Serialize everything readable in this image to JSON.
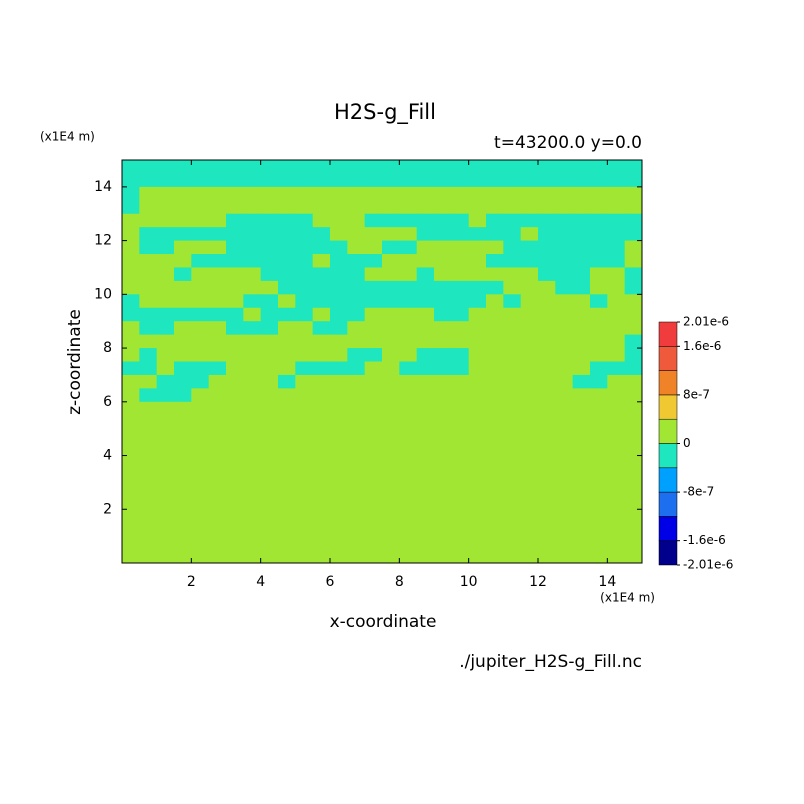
{
  "chart_data": {
    "type": "heatmap",
    "title": "H2S-g_Fill",
    "subtitle": "t=43200.0 y=0.0",
    "xlabel": "x-coordinate",
    "ylabel": "z-coordinate",
    "xunit": "(x1E4 m)",
    "yunit": "(x1E4 m)",
    "footer": "./jupiter_H2S-g_Fill.nc",
    "xlim": [
      0,
      15
    ],
    "ylim": [
      0,
      15
    ],
    "xticks": [
      2,
      4,
      6,
      8,
      10,
      12,
      14
    ],
    "yticks": [
      2,
      4,
      6,
      8,
      10,
      12,
      14
    ],
    "x": [
      0.25,
      0.75,
      1.25,
      1.75,
      2.25,
      2.75,
      3.25,
      3.75,
      4.25,
      4.75,
      5.25,
      5.75,
      6.25,
      6.75,
      7.25,
      7.75,
      8.25,
      8.75,
      9.25,
      9.75,
      10.25,
      10.75,
      11.25,
      11.75,
      12.25,
      12.75,
      13.25,
      13.75,
      14.25,
      14.75
    ],
    "y": [
      14.75,
      14.25,
      13.75,
      13.25,
      12.75,
      12.25,
      11.75,
      11.25,
      10.75,
      10.25,
      9.75,
      9.25,
      8.75,
      8.25,
      7.75,
      7.25,
      6.75,
      6.25,
      5.75,
      5.25,
      4.75,
      4.25,
      3.75,
      3.25,
      2.75,
      2.25,
      1.75,
      1.25,
      0.75,
      0.25
    ],
    "cell": 0.5,
    "z": [
      [
        -2e-07,
        -2e-07,
        -2e-07,
        -2e-07,
        -2e-07,
        -2e-07,
        -2e-07,
        -2e-07,
        -2e-07,
        -2e-07,
        -2e-07,
        -2e-07,
        -2e-07,
        -2e-07,
        -2e-07,
        -2e-07,
        -2e-07,
        -2e-07,
        -2e-07,
        -2e-07,
        -2e-07,
        -2e-07,
        -2e-07,
        -2e-07,
        -2e-07,
        -2e-07,
        -2e-07,
        -2e-07,
        -2e-07,
        -2e-07
      ],
      [
        -2e-07,
        -2e-07,
        -2e-07,
        -2e-07,
        -2e-07,
        -2e-07,
        -2e-07,
        -2e-07,
        -2e-07,
        -2e-07,
        -2e-07,
        -2e-07,
        -2e-07,
        -2e-07,
        -2e-07,
        -2e-07,
        -2e-07,
        -2e-07,
        -2e-07,
        -2e-07,
        -2e-07,
        -2e-07,
        -2e-07,
        -2e-07,
        -2e-07,
        -2e-07,
        -2e-07,
        -2e-07,
        -2e-07,
        -2e-07
      ],
      [
        -2e-07,
        0,
        0,
        0,
        0,
        0,
        0,
        0,
        0,
        0,
        0,
        0,
        0,
        0,
        0,
        0,
        0,
        0,
        0,
        0,
        0,
        0,
        0,
        0,
        0,
        0,
        0,
        0,
        0,
        0
      ],
      [
        -2e-07,
        0,
        0,
        0,
        0,
        0,
        0,
        0,
        0,
        0,
        0,
        0,
        0,
        0,
        0,
        0,
        0,
        0,
        0,
        0,
        0,
        0,
        0,
        0,
        0,
        0,
        0,
        0,
        0,
        0
      ],
      [
        0,
        0,
        0,
        0,
        0,
        0,
        -2e-07,
        -2e-07,
        -2e-07,
        -2e-07,
        -2e-07,
        0,
        0,
        0,
        -2e-07,
        -2e-07,
        -2e-07,
        -2e-07,
        -2e-07,
        -2e-07,
        0,
        -2e-07,
        -2e-07,
        -2e-07,
        -2e-07,
        -2e-07,
        -2e-07,
        -2e-07,
        -2e-07,
        -2e-07
      ],
      [
        0,
        -2e-07,
        -2e-07,
        -2e-07,
        -2e-07,
        -2e-07,
        -2e-07,
        -2e-07,
        -2e-07,
        -2e-07,
        -2e-07,
        -2e-07,
        0,
        0,
        0,
        0,
        0,
        -2e-07,
        -2e-07,
        -2e-07,
        -2e-07,
        -2e-07,
        -2e-07,
        0,
        -2e-07,
        -2e-07,
        -2e-07,
        -2e-07,
        -2e-07,
        -2e-07
      ],
      [
        0,
        -2e-07,
        -2e-07,
        0,
        0,
        0,
        -2e-07,
        -2e-07,
        -2e-07,
        -2e-07,
        -2e-07,
        -2e-07,
        -2e-07,
        0,
        0,
        -2e-07,
        -2e-07,
        0,
        0,
        0,
        0,
        0,
        -2e-07,
        -2e-07,
        -2e-07,
        -2e-07,
        -2e-07,
        -2e-07,
        -2e-07,
        0
      ],
      [
        0,
        0,
        0,
        0,
        -2e-07,
        -2e-07,
        -2e-07,
        -2e-07,
        -2e-07,
        -2e-07,
        -2e-07,
        0,
        -2e-07,
        -2e-07,
        -2e-07,
        0,
        0,
        0,
        0,
        0,
        0,
        -2e-07,
        -2e-07,
        -2e-07,
        -2e-07,
        -2e-07,
        -2e-07,
        -2e-07,
        -2e-07,
        0
      ],
      [
        0,
        0,
        0,
        -2e-07,
        0,
        0,
        0,
        0,
        -2e-07,
        -2e-07,
        -2e-07,
        -2e-07,
        -2e-07,
        -2e-07,
        0,
        0,
        0,
        -2e-07,
        0,
        0,
        0,
        0,
        0,
        0,
        -2e-07,
        -2e-07,
        -2e-07,
        0,
        0,
        -2e-07
      ],
      [
        0,
        0,
        0,
        0,
        0,
        0,
        0,
        0,
        0,
        -2e-07,
        -2e-07,
        -2e-07,
        -2e-07,
        -2e-07,
        -2e-07,
        -2e-07,
        -2e-07,
        -2e-07,
        -2e-07,
        -2e-07,
        -2e-07,
        -2e-07,
        0,
        0,
        0,
        -2e-07,
        -2e-07,
        0,
        0,
        -2e-07
      ],
      [
        -2e-07,
        0,
        0,
        0,
        0,
        0,
        0,
        -2e-07,
        -2e-07,
        0,
        -2e-07,
        -2e-07,
        -2e-07,
        -2e-07,
        -2e-07,
        -2e-07,
        -2e-07,
        -2e-07,
        -2e-07,
        -2e-07,
        -2e-07,
        0,
        -2e-07,
        0,
        0,
        0,
        0,
        -2e-07,
        0,
        0
      ],
      [
        -2e-07,
        -2e-07,
        -2e-07,
        -2e-07,
        -2e-07,
        -2e-07,
        -2e-07,
        0,
        -2e-07,
        -2e-07,
        -2e-07,
        0,
        -2e-07,
        -2e-07,
        0,
        0,
        0,
        0,
        -2e-07,
        -2e-07,
        0,
        0,
        0,
        0,
        0,
        0,
        0,
        0,
        0,
        0
      ],
      [
        0,
        -2e-07,
        -2e-07,
        0,
        0,
        0,
        -2e-07,
        -2e-07,
        -2e-07,
        0,
        0,
        -2e-07,
        -2e-07,
        0,
        0,
        0,
        0,
        0,
        0,
        0,
        0,
        0,
        0,
        0,
        0,
        0,
        0,
        0,
        0,
        0
      ],
      [
        0,
        0,
        0,
        0,
        0,
        0,
        0,
        0,
        0,
        0,
        0,
        0,
        0,
        0,
        0,
        0,
        0,
        0,
        0,
        0,
        0,
        0,
        0,
        0,
        0,
        0,
        0,
        0,
        0,
        -2e-07
      ],
      [
        0,
        -2e-07,
        0,
        0,
        0,
        0,
        0,
        0,
        0,
        0,
        0,
        0,
        0,
        -2e-07,
        -2e-07,
        0,
        0,
        -2e-07,
        -2e-07,
        -2e-07,
        0,
        0,
        0,
        0,
        0,
        0,
        0,
        0,
        0,
        -2e-07
      ],
      [
        -2e-07,
        -2e-07,
        0,
        -2e-07,
        -2e-07,
        -2e-07,
        0,
        0,
        0,
        0,
        -2e-07,
        -2e-07,
        -2e-07,
        -2e-07,
        0,
        0,
        -2e-07,
        -2e-07,
        -2e-07,
        -2e-07,
        0,
        0,
        0,
        0,
        0,
        0,
        0,
        -2e-07,
        -2e-07,
        -2e-07
      ],
      [
        0,
        0,
        -2e-07,
        -2e-07,
        -2e-07,
        0,
        0,
        0,
        0,
        -2e-07,
        0,
        0,
        0,
        0,
        0,
        0,
        0,
        0,
        0,
        0,
        0,
        0,
        0,
        0,
        0,
        0,
        -2e-07,
        -2e-07,
        0,
        0
      ],
      [
        0,
        -2e-07,
        -2e-07,
        -2e-07,
        0,
        0,
        0,
        0,
        0,
        0,
        0,
        0,
        0,
        0,
        0,
        0,
        0,
        0,
        0,
        0,
        0,
        0,
        0,
        0,
        0,
        0,
        0,
        0,
        0,
        0
      ],
      [
        0,
        0,
        0,
        0,
        0,
        0,
        0,
        0,
        0,
        0,
        0,
        0,
        0,
        0,
        0,
        0,
        0,
        0,
        0,
        0,
        0,
        0,
        0,
        0,
        0,
        0,
        0,
        0,
        0,
        0
      ],
      [
        0,
        0,
        0,
        0,
        0,
        0,
        0,
        0,
        0,
        0,
        0,
        0,
        0,
        0,
        0,
        0,
        0,
        0,
        0,
        0,
        0,
        0,
        0,
        0,
        0,
        0,
        0,
        0,
        0,
        0
      ],
      [
        0,
        0,
        0,
        0,
        0,
        0,
        0,
        0,
        0,
        0,
        0,
        0,
        0,
        0,
        0,
        0,
        0,
        0,
        0,
        0,
        0,
        0,
        0,
        0,
        0,
        0,
        0,
        0,
        0,
        0
      ],
      [
        0,
        0,
        0,
        0,
        0,
        0,
        0,
        0,
        0,
        0,
        0,
        0,
        0,
        0,
        0,
        0,
        0,
        0,
        0,
        0,
        0,
        0,
        0,
        0,
        0,
        0,
        0,
        0,
        0,
        0
      ],
      [
        0,
        0,
        0,
        0,
        0,
        0,
        0,
        0,
        0,
        0,
        0,
        0,
        0,
        0,
        0,
        0,
        0,
        0,
        0,
        0,
        0,
        0,
        0,
        0,
        0,
        0,
        0,
        0,
        0,
        0
      ],
      [
        0,
        0,
        0,
        0,
        0,
        0,
        0,
        0,
        0,
        0,
        0,
        0,
        0,
        0,
        0,
        0,
        0,
        0,
        0,
        0,
        0,
        0,
        0,
        0,
        0,
        0,
        0,
        0,
        0,
        0
      ],
      [
        0,
        0,
        0,
        0,
        0,
        0,
        0,
        0,
        0,
        0,
        0,
        0,
        0,
        0,
        0,
        0,
        0,
        0,
        0,
        0,
        0,
        0,
        0,
        0,
        0,
        0,
        0,
        0,
        0,
        0
      ],
      [
        0,
        0,
        0,
        0,
        0,
        0,
        0,
        0,
        0,
        0,
        0,
        0,
        0,
        0,
        0,
        0,
        0,
        0,
        0,
        0,
        0,
        0,
        0,
        0,
        0,
        0,
        0,
        0,
        0,
        0
      ],
      [
        0,
        0,
        0,
        0,
        0,
        0,
        0,
        0,
        0,
        0,
        0,
        0,
        0,
        0,
        0,
        0,
        0,
        0,
        0,
        0,
        0,
        0,
        0,
        0,
        0,
        0,
        0,
        0,
        0,
        0
      ],
      [
        0,
        0,
        0,
        0,
        0,
        0,
        0,
        0,
        0,
        0,
        0,
        0,
        0,
        0,
        0,
        0,
        0,
        0,
        0,
        0,
        0,
        0,
        0,
        0,
        0,
        0,
        0,
        0,
        0,
        0
      ],
      [
        0,
        0,
        0,
        0,
        0,
        0,
        0,
        0,
        0,
        0,
        0,
        0,
        0,
        0,
        0,
        0,
        0,
        0,
        0,
        0,
        0,
        0,
        0,
        0,
        0,
        0,
        0,
        0,
        0,
        0
      ],
      [
        0,
        0,
        0,
        0,
        0,
        0,
        0,
        0,
        0,
        0,
        0,
        0,
        0,
        0,
        0,
        0,
        0,
        0,
        0,
        0,
        0,
        0,
        0,
        0,
        0,
        0,
        0,
        0,
        0,
        0
      ]
    ],
    "colorbar": {
      "levels": [
        -2.01e-06,
        -1.6e-06,
        -1.2e-06,
        -8e-07,
        -4e-07,
        0,
        4e-07,
        8e-07,
        1.2e-06,
        1.6e-06,
        2.01e-06
      ],
      "colors": [
        "#00008c",
        "#0000e6",
        "#1e6ef0",
        "#00a0ff",
        "#1ee6be",
        "#a0e632",
        "#f0c832",
        "#f08228",
        "#f05a3c",
        "#f03c3c"
      ],
      "ticks": [
        {
          "value": 2.01e-06,
          "label": "2.01e-6"
        },
        {
          "value": 1.6e-06,
          "label": "1.6e-6"
        },
        {
          "value": 8e-07,
          "label": "8e-7"
        },
        0,
        {
          "value": -8e-07,
          "label": "-8e-7"
        },
        {
          "value": -1.6e-06,
          "label": "-1.6e-6"
        },
        {
          "value": -2.01e-06,
          "label": "-2.01e-6"
        }
      ]
    }
  }
}
